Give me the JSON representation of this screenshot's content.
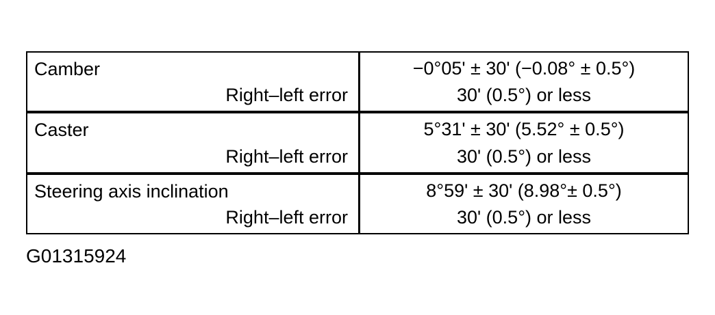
{
  "colors": {
    "background": "#ffffff",
    "text": "#000000",
    "border": "#000000"
  },
  "table": {
    "rows": [
      {
        "parameter": "Camber",
        "sub_label": "Right–left error",
        "spec": "−0°05' ± 30' (−0.08° ± 0.5°)",
        "sub_spec": "30' (0.5°) or less"
      },
      {
        "parameter": "Caster",
        "sub_label": "Right–left error",
        "spec": "5°31' ± 30' (5.52° ± 0.5°)",
        "sub_spec": "30' (0.5°) or less"
      },
      {
        "parameter": "Steering axis inclination",
        "sub_label": "Right–left error",
        "spec": "8°59' ± 30' (8.98°± 0.5°)",
        "sub_spec": "30' (0.5°) or less"
      }
    ]
  },
  "caption": "G01315924"
}
